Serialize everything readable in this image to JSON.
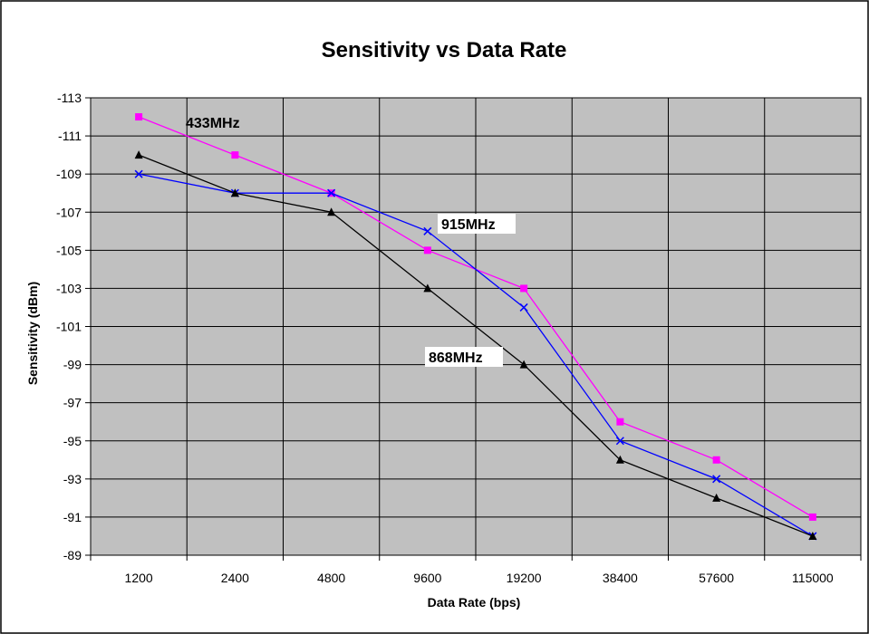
{
  "chart_data": {
    "type": "line",
    "title": "Sensitivity vs Data Rate",
    "xlabel": "Data Rate (bps)",
    "ylabel": "Sensitivity (dBm)",
    "categories": [
      "1200",
      "2400",
      "4800",
      "9600",
      "19200",
      "38400",
      "57600",
      "115000"
    ],
    "y_ticks": [
      "-113",
      "-111",
      "-109",
      "-107",
      "-105",
      "-103",
      "-101",
      "-99",
      "-97",
      "-95",
      "-93",
      "-91",
      "-89"
    ],
    "ylim": [
      -113,
      -89
    ],
    "y_reversed": true,
    "grid": true,
    "plot_background": "#c0c0c0",
    "series": [
      {
        "name": "433MHz",
        "color": "#ff00ff",
        "marker": "square",
        "values": [
          -112,
          -110,
          -108,
          -105,
          -103,
          -96,
          -94,
          -91
        ]
      },
      {
        "name": "915MHz",
        "color": "#0000ff",
        "marker": "x",
        "values": [
          -109,
          -108,
          -108,
          -106,
          -102,
          -95,
          -93,
          -90
        ]
      },
      {
        "name": "868MHz",
        "color": "#000000",
        "marker": "triangle",
        "values": [
          -110,
          -108,
          -107,
          -103,
          -99,
          -94,
          -92,
          -90
        ]
      }
    ]
  }
}
